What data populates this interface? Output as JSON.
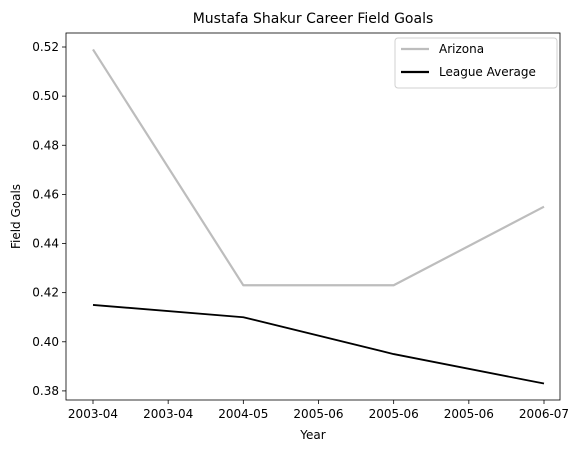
{
  "chart_data": {
    "type": "line",
    "title": "Mustafa Shakur Career Field Goals",
    "xlabel": "Year",
    "ylabel": "Field Goals",
    "x_tick_labels": [
      "2003-04",
      "2003-04",
      "2004-05",
      "2005-06",
      "2005-06",
      "2005-06",
      "2006-07"
    ],
    "categories": [
      "2003-04",
      "2004-05",
      "2005-06",
      "2006-07"
    ],
    "series": [
      {
        "name": "Arizona",
        "values": [
          0.519,
          0.423,
          0.423,
          0.455
        ],
        "color": "#bdbdbd"
      },
      {
        "name": "League Average",
        "values": [
          0.415,
          0.41,
          0.395,
          0.383
        ],
        "color": "#000000"
      }
    ],
    "y_ticks": [
      "0.38",
      "0.40",
      "0.42",
      "0.44",
      "0.46",
      "0.48",
      "0.50",
      "0.52"
    ],
    "ylim": [
      0.3763,
      0.5257
    ],
    "grid": false,
    "legend_position": "top-right"
  }
}
